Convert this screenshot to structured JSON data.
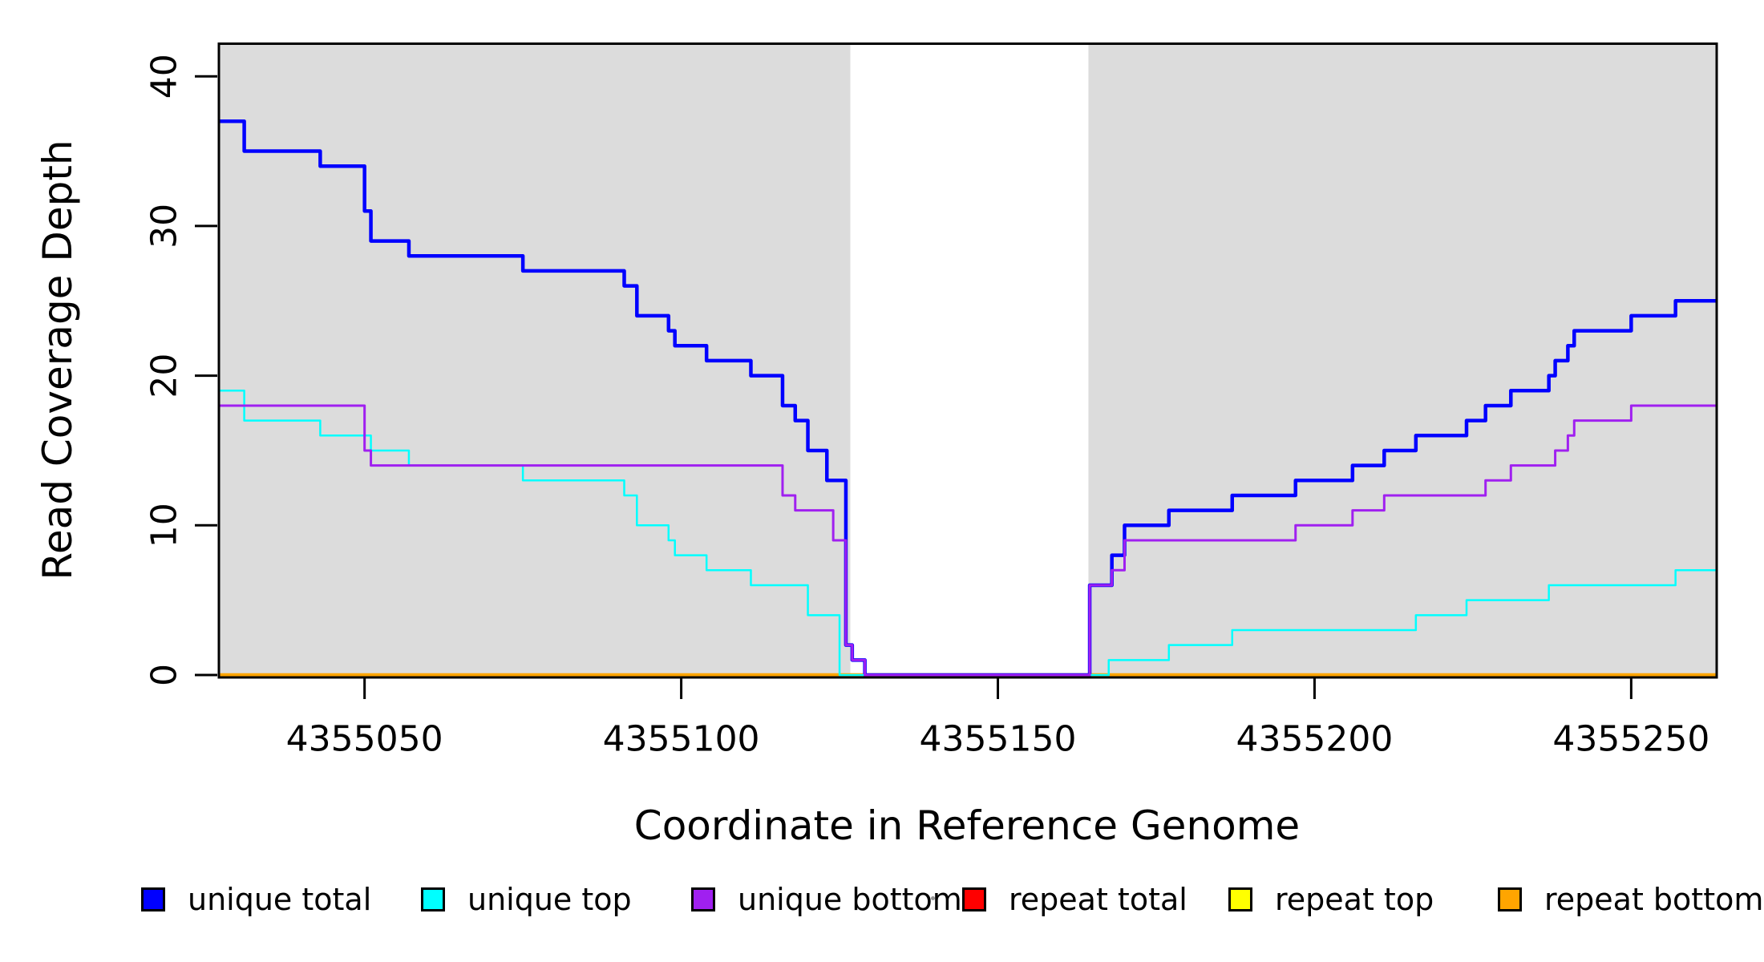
{
  "page": {
    "background": "#ffffff"
  },
  "chart_data": {
    "type": "line",
    "subtype": "step-coverage-plot",
    "title": "",
    "xlabel": "Coordinate in Reference Genome",
    "ylabel": "Read Coverage Depth",
    "xlim": [
      4355027,
      4355263.5
    ],
    "ylim": [
      0,
      42.1
    ],
    "xticks": [
      4355050,
      4355100,
      4355150,
      4355200,
      4355250
    ],
    "yticks": [
      0,
      10,
      20,
      30,
      40
    ],
    "grid": false,
    "plot_border": true,
    "axis_color": "#000000",
    "tick_label_color": "#000000",
    "shaded_regions": [
      {
        "name": "left-flank-region",
        "x0": 4355027,
        "x1": 4355126.7,
        "color": "#DCDCDC"
      },
      {
        "name": "right-flank-region",
        "x0": 4355164.3,
        "x1": 4355263.5,
        "color": "#DCDCDC"
      }
    ],
    "series": [
      {
        "name": "repeat total",
        "color": "#FF0000",
        "lwd": 3,
        "start": 0,
        "steps": []
      },
      {
        "name": "repeat top",
        "color": "#FFFF00",
        "lwd": 3,
        "start": 0,
        "steps": []
      },
      {
        "name": "repeat bottom",
        "color": "#FFA500",
        "lwd": 4.5,
        "start": 0,
        "steps": []
      },
      {
        "name": "unique total",
        "color": "#0000FF",
        "lwd": 4.5,
        "start": 37,
        "steps": [
          [
            4355031,
            35
          ],
          [
            4355043,
            34
          ],
          [
            4355050,
            31
          ],
          [
            4355051,
            29
          ],
          [
            4355057,
            28
          ],
          [
            4355075,
            27
          ],
          [
            4355091,
            26
          ],
          [
            4355093,
            24
          ],
          [
            4355098,
            23
          ],
          [
            4355099,
            22
          ],
          [
            4355104,
            21
          ],
          [
            4355111,
            20
          ],
          [
            4355116,
            18
          ],
          [
            4355118,
            17
          ],
          [
            4355120,
            15
          ],
          [
            4355123,
            13
          ],
          [
            4355126,
            2
          ],
          [
            4355127,
            1
          ],
          [
            4355129,
            0
          ],
          [
            4355164.5,
            6
          ],
          [
            4355168,
            8
          ],
          [
            4355170,
            10
          ],
          [
            4355177,
            11
          ],
          [
            4355187,
            12
          ],
          [
            4355197,
            13
          ],
          [
            4355206,
            14
          ],
          [
            4355211,
            15
          ],
          [
            4355216,
            16
          ],
          [
            4355224,
            17
          ],
          [
            4355227,
            18
          ],
          [
            4355231,
            19
          ],
          [
            4355237,
            20
          ],
          [
            4355238,
            21
          ],
          [
            4355240,
            22
          ],
          [
            4355241,
            23
          ],
          [
            4355250,
            24
          ],
          [
            4355257,
            25
          ]
        ]
      },
      {
        "name": "unique top",
        "color": "#00FFFF",
        "lwd": 2.5,
        "start": 19,
        "steps": [
          [
            4355031,
            17
          ],
          [
            4355043,
            16
          ],
          [
            4355051,
            15
          ],
          [
            4355057,
            14
          ],
          [
            4355075,
            13
          ],
          [
            4355091,
            12
          ],
          [
            4355093,
            10
          ],
          [
            4355098,
            9
          ],
          [
            4355099,
            8
          ],
          [
            4355104,
            7
          ],
          [
            4355111,
            6
          ],
          [
            4355120,
            4
          ],
          [
            4355125,
            0
          ],
          [
            4355167.5,
            1
          ],
          [
            4355177,
            2
          ],
          [
            4355187,
            3
          ],
          [
            4355216,
            4
          ],
          [
            4355224,
            5
          ],
          [
            4355237,
            6
          ],
          [
            4355257,
            7
          ]
        ]
      },
      {
        "name": "unique bottom",
        "color": "#A020F0",
        "lwd": 3,
        "start": 18,
        "steps": [
          [
            4355050,
            15
          ],
          [
            4355051,
            14
          ],
          [
            4355116,
            12
          ],
          [
            4355118,
            11
          ],
          [
            4355124,
            9
          ],
          [
            4355126,
            2
          ],
          [
            4355127,
            1
          ],
          [
            4355129,
            0
          ],
          [
            4355164.5,
            6
          ],
          [
            4355168,
            7
          ],
          [
            4355170,
            9
          ],
          [
            4355197,
            10
          ],
          [
            4355206,
            11
          ],
          [
            4355211,
            12
          ],
          [
            4355227,
            13
          ],
          [
            4355231,
            14
          ],
          [
            4355238,
            15
          ],
          [
            4355240,
            16
          ],
          [
            4355241,
            17
          ],
          [
            4355250,
            18
          ]
        ]
      }
    ]
  },
  "legend": {
    "items": [
      {
        "label": "unique total",
        "color": "#0000FF"
      },
      {
        "label": "unique top",
        "color": "#00FFFF"
      },
      {
        "label": "unique bottom",
        "color": "#A020F0"
      },
      {
        "label": "repeat total",
        "color": "#FF0000"
      },
      {
        "label": "repeat top",
        "color": "#FFFF00"
      },
      {
        "label": "repeat bottom",
        "color": "#FFA500"
      }
    ]
  }
}
